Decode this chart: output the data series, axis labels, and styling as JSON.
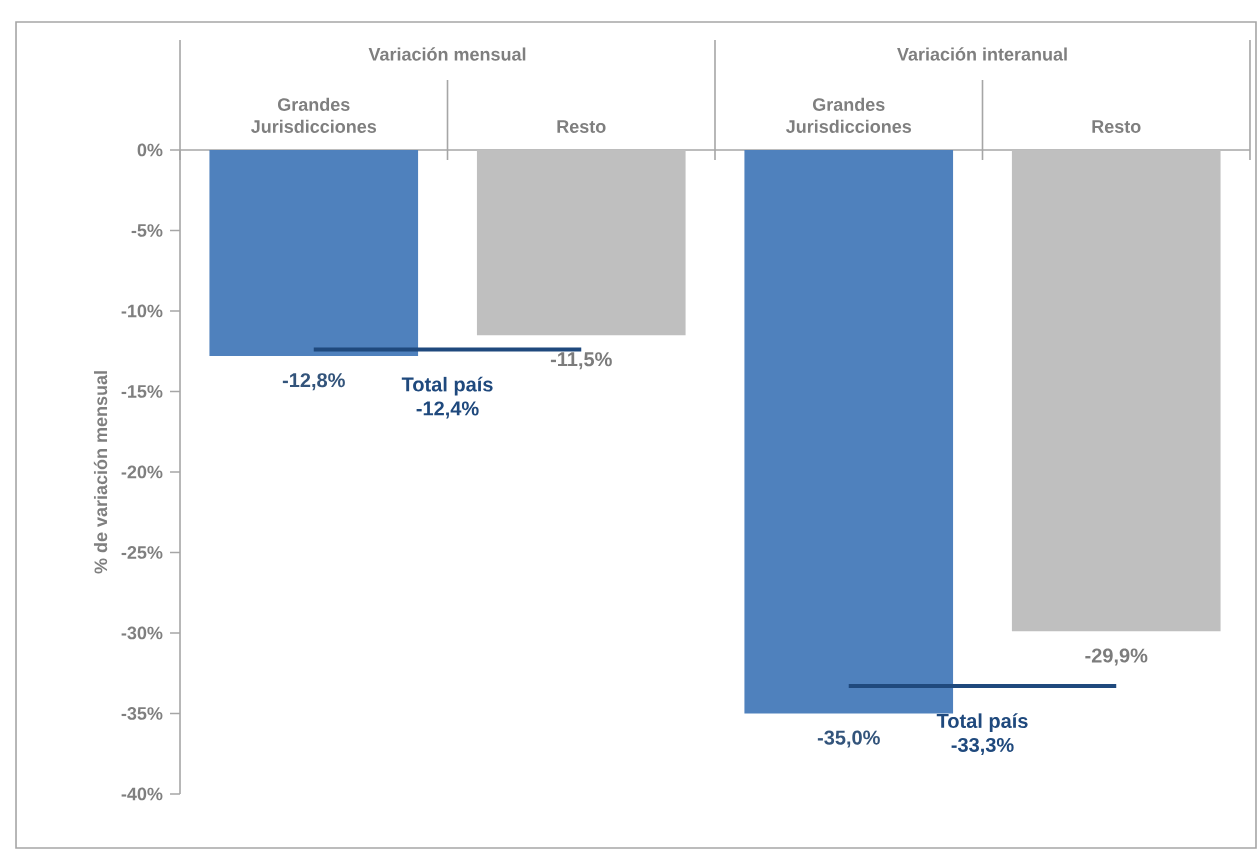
{
  "chart_data": {
    "type": "bar",
    "categories": [
      "Grandes Jurisdicciones",
      "Resto",
      "Grandes Jurisdicciones",
      "Resto"
    ],
    "annotations": [
      "Variación mensual",
      "Variación interanual",
      {
        "text": "-12,4%",
        "y": -12.4
      },
      {
        "text": "-33,3%",
        "y": -33.3
      }
    ],
    "ylabel": "% de variación mensual",
    "ylim": [
      -40,
      0
    ],
    "yticks": [
      {
        "value": 0,
        "label": "0%"
      },
      {
        "value": -5,
        "label": "-5%"
      },
      {
        "value": -10,
        "label": "-10%"
      },
      {
        "value": -15,
        "label": "-15%"
      },
      {
        "value": -20,
        "label": "-20%"
      },
      {
        "value": -25,
        "label": "-25%"
      },
      {
        "value": -30,
        "label": "-30%"
      },
      {
        "value": -35,
        "label": "-35%"
      },
      {
        "value": -40,
        "label": "-40%"
      }
    ],
    "series": [
      {
        "type": "bar",
        "colors": [
          "#4f81bd",
          "#bfbfbf",
          "#4f81bd",
          "#bfbfbf"
        ],
        "values": [
          -12.8,
          -11.5,
          -35.0,
          -29.9
        ],
        "value_labels": [
          "-12,8%",
          "-11,5%",
          "-35,0%",
          "-29,9%"
        ]
      },
      {
        "type": "line",
        "name": "Total país",
        "color": "#1f497d",
        "values": [
          -12.4,
          -12.4,
          null,
          null
        ]
      },
      {
        "type": "line",
        "name": "Total país",
        "color": "#1f497d",
        "values": [
          null,
          null,
          -33.3,
          -33.3
        ]
      }
    ]
  }
}
